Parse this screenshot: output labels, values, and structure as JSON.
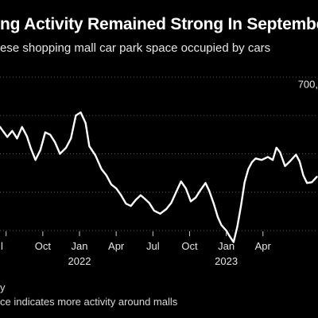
{
  "title": "ng Activity Remained Strong In September",
  "subtitle": "ese shopping mall car park space occupied by cars",
  "footnotes": [
    "y",
    "ce indicates more activity around malls"
  ],
  "chart_data": {
    "type": "line",
    "color": "#ffffff",
    "grid": "horizontal dashed",
    "y_tick_labels": [
      {
        "value": 700,
        "label": "700,"
      }
    ],
    "x_tick_labels": [
      {
        "x": 0,
        "label": "l"
      },
      {
        "x": 3,
        "label": "Oct"
      },
      {
        "x": 6,
        "label": "Jan",
        "year": "2022"
      },
      {
        "x": 9,
        "label": "Apr"
      },
      {
        "x": 12,
        "label": "Jul"
      },
      {
        "x": 15,
        "label": "Oct"
      },
      {
        "x": 18,
        "label": "Jan",
        "year": "2023"
      },
      {
        "x": 21,
        "label": "Apr"
      }
    ],
    "xlim": [
      -0.5,
      25.5
    ],
    "ylim": [
      520,
      720
    ],
    "series": [
      {
        "values": [
          [
            -0.5,
            655
          ],
          [
            0.1,
            642
          ],
          [
            0.5,
            650
          ],
          [
            0.9,
            640
          ],
          [
            1.3,
            655
          ],
          [
            1.7,
            643
          ],
          [
            2.0,
            628
          ],
          [
            2.4,
            612
          ],
          [
            2.8,
            625
          ],
          [
            3.2,
            648
          ],
          [
            3.6,
            645
          ],
          [
            4.0,
            635
          ],
          [
            4.4,
            620
          ],
          [
            4.9,
            628
          ],
          [
            5.3,
            640
          ],
          [
            5.7,
            670
          ],
          [
            6.1,
            674
          ],
          [
            6.5,
            660
          ],
          [
            6.8,
            630
          ],
          [
            7.3,
            618
          ],
          [
            7.8,
            600
          ],
          [
            8.2,
            592
          ],
          [
            8.6,
            580
          ],
          [
            9.0,
            575
          ],
          [
            9.4,
            566
          ],
          [
            9.8,
            555
          ],
          [
            10.2,
            552
          ],
          [
            10.6,
            560
          ],
          [
            11.0,
            566
          ],
          [
            11.3,
            562
          ],
          [
            11.7,
            556
          ],
          [
            12.1,
            546
          ],
          [
            12.6,
            542
          ],
          [
            13.1,
            548
          ],
          [
            13.5,
            556
          ],
          [
            13.9,
            570
          ],
          [
            14.3,
            584
          ],
          [
            14.7,
            575
          ],
          [
            15.1,
            558
          ],
          [
            15.5,
            563
          ],
          [
            15.9,
            573
          ],
          [
            16.3,
            582
          ],
          [
            16.6,
            572
          ],
          [
            17.0,
            554
          ],
          [
            17.3,
            538
          ],
          [
            17.6,
            527
          ],
          [
            18.0,
            520
          ],
          [
            18.3,
            512
          ],
          [
            18.6,
            505
          ],
          [
            18.9,
            525
          ],
          [
            19.2,
            552
          ],
          [
            19.5,
            583
          ],
          [
            19.8,
            600
          ],
          [
            20.1,
            609
          ],
          [
            20.4,
            614
          ],
          [
            20.9,
            612
          ],
          [
            21.4,
            616
          ],
          [
            21.8,
            612
          ],
          [
            22.1,
            628
          ],
          [
            22.4,
            622
          ],
          [
            22.8,
            604
          ],
          [
            23.2,
            610
          ],
          [
            23.7,
            619
          ],
          [
            24.0,
            610
          ],
          [
            24.3,
            592
          ],
          [
            24.6,
            582
          ],
          [
            25.0,
            583
          ],
          [
            25.4,
            590
          ]
        ]
      }
    ]
  }
}
